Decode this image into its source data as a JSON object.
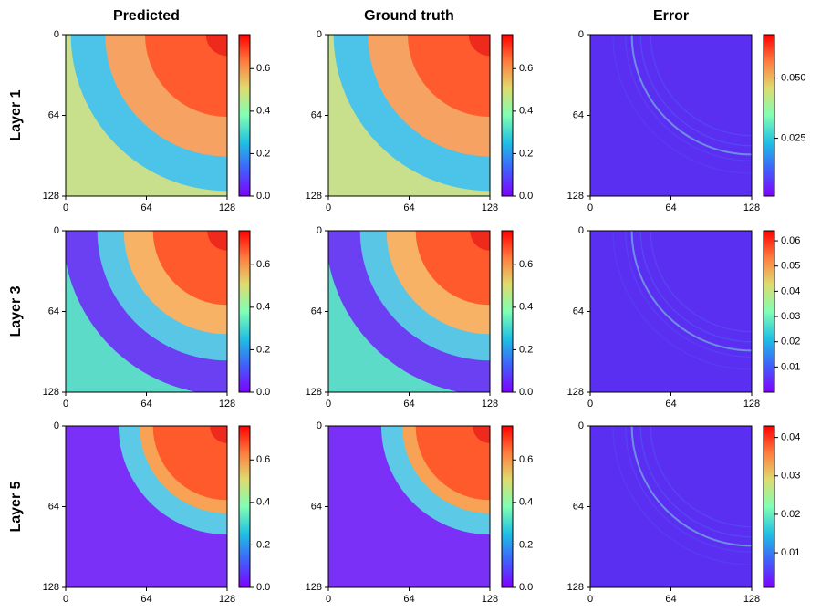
{
  "chart_data": [
    {
      "type": "heatmap",
      "title": "Predicted",
      "ylabel": "Layer 1",
      "xlim": [
        0,
        128
      ],
      "ylim": [
        128,
        0
      ],
      "xticks": [
        0,
        64,
        128
      ],
      "yticks": [
        0,
        64,
        128
      ],
      "colorbar": {
        "lim": [
          0,
          0.76
        ],
        "ticks": [
          {
            "value": 0,
            "label": "0.0"
          },
          0.2,
          0.4,
          0.6
        ]
      }
    },
    {
      "type": "heatmap",
      "title": "Ground truth",
      "xlim": [
        0,
        128
      ],
      "ylim": [
        128,
        0
      ],
      "xticks": [
        0,
        64,
        128
      ],
      "yticks": [
        0,
        64,
        128
      ],
      "colorbar": {
        "lim": [
          0,
          0.76
        ],
        "ticks": [
          {
            "value": 0,
            "label": "0.0"
          },
          0.2,
          0.4,
          0.6
        ]
      }
    },
    {
      "type": "heatmap",
      "title": "Error",
      "xlim": [
        0,
        128
      ],
      "ylim": [
        128,
        0
      ],
      "xticks": [
        0,
        64,
        128
      ],
      "yticks": [
        0,
        64,
        128
      ],
      "colorbar": {
        "lim": [
          0.001,
          0.068
        ],
        "ticks": [
          0.025,
          {
            "value": 0.05,
            "label": "0.050"
          }
        ]
      }
    },
    {
      "type": "heatmap",
      "ylabel": "Layer 3",
      "xlim": [
        0,
        128
      ],
      "ylim": [
        128,
        0
      ],
      "xticks": [
        0,
        64,
        128
      ],
      "yticks": [
        0,
        64,
        128
      ],
      "colorbar": {
        "lim": [
          0,
          0.76
        ],
        "ticks": [
          {
            "value": 0,
            "label": "0.0"
          },
          0.2,
          0.4,
          0.6
        ]
      }
    },
    {
      "type": "heatmap",
      "xlim": [
        0,
        128
      ],
      "ylim": [
        128,
        0
      ],
      "xticks": [
        0,
        64,
        128
      ],
      "yticks": [
        0,
        64,
        128
      ],
      "colorbar": {
        "lim": [
          0,
          0.76
        ],
        "ticks": [
          {
            "value": 0,
            "label": "0.0"
          },
          0.2,
          0.4,
          0.6
        ]
      }
    },
    {
      "type": "heatmap",
      "xlim": [
        0,
        128
      ],
      "ylim": [
        128,
        0
      ],
      "xticks": [
        0,
        64,
        128
      ],
      "yticks": [
        0,
        64,
        128
      ],
      "colorbar": {
        "lim": [
          0,
          0.064
        ],
        "ticks": [
          0.01,
          0.02,
          0.03,
          0.04,
          0.05,
          0.06
        ]
      }
    },
    {
      "type": "heatmap",
      "ylabel": "Layer 5",
      "xlim": [
        0,
        128
      ],
      "ylim": [
        128,
        0
      ],
      "xticks": [
        0,
        64,
        128
      ],
      "yticks": [
        0,
        64,
        128
      ],
      "colorbar": {
        "lim": [
          0,
          0.76
        ],
        "ticks": [
          {
            "value": 0,
            "label": "0.0"
          },
          0.2,
          0.4,
          0.6
        ]
      }
    },
    {
      "type": "heatmap",
      "xlim": [
        0,
        128
      ],
      "ylim": [
        128,
        0
      ],
      "xticks": [
        0,
        64,
        128
      ],
      "yticks": [
        0,
        64,
        128
      ],
      "colorbar": {
        "lim": [
          0,
          0.76
        ],
        "ticks": [
          {
            "value": 0,
            "label": "0.0"
          },
          0.2,
          0.4,
          0.6
        ]
      }
    },
    {
      "type": "heatmap",
      "xlim": [
        0,
        128
      ],
      "ylim": [
        128,
        0
      ],
      "xticks": [
        0,
        64,
        128
      ],
      "yticks": [
        0,
        64,
        128
      ],
      "colorbar": {
        "lim": [
          0.001,
          0.043
        ],
        "ticks": [
          0.01,
          0.02,
          0.03,
          0.04
        ]
      }
    }
  ]
}
